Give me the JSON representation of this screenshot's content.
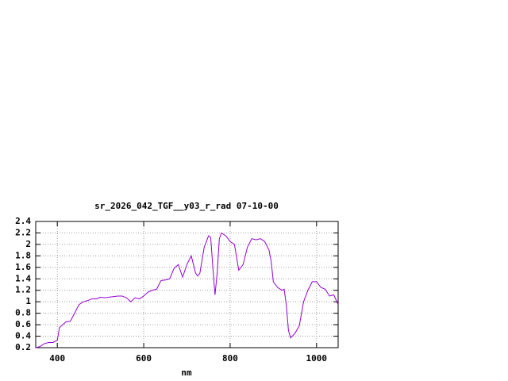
{
  "chart_data": {
    "type": "line",
    "title": "sr_2026_042_TGF__y03_r_rad 07-10-00",
    "x_label": "nm",
    "x": [
      350,
      360,
      370,
      380,
      390,
      400,
      405,
      420,
      430,
      440,
      450,
      460,
      470,
      480,
      490,
      500,
      510,
      520,
      540,
      550,
      560,
      570,
      580,
      590,
      600,
      610,
      620,
      630,
      640,
      650,
      660,
      670,
      680,
      690,
      700,
      710,
      720,
      725,
      730,
      740,
      750,
      755,
      760,
      765,
      770,
      775,
      780,
      790,
      800,
      810,
      820,
      830,
      840,
      850,
      860,
      870,
      880,
      890,
      895,
      900,
      910,
      920,
      925,
      930,
      935,
      940,
      950,
      960,
      970,
      980,
      990,
      1000,
      1010,
      1020,
      1030,
      1040,
      1050
    ],
    "series": [
      {
        "color": "#9400d3",
        "values": [
          0.2,
          0.22,
          0.27,
          0.29,
          0.29,
          0.33,
          0.55,
          0.65,
          0.66,
          0.8,
          0.95,
          1.0,
          1.02,
          1.05,
          1.05,
          1.08,
          1.07,
          1.08,
          1.1,
          1.1,
          1.07,
          1.0,
          1.07,
          1.05,
          1.1,
          1.17,
          1.2,
          1.22,
          1.37,
          1.38,
          1.4,
          1.58,
          1.65,
          1.43,
          1.65,
          1.8,
          1.5,
          1.45,
          1.5,
          1.95,
          2.15,
          2.12,
          1.6,
          1.12,
          1.5,
          2.1,
          2.2,
          2.15,
          2.05,
          2.0,
          1.55,
          1.65,
          1.95,
          2.1,
          2.08,
          2.1,
          2.05,
          1.9,
          1.7,
          1.35,
          1.25,
          1.2,
          1.22,
          0.95,
          0.5,
          0.37,
          0.45,
          0.58,
          1.0,
          1.2,
          1.35,
          1.35,
          1.25,
          1.22,
          1.1,
          1.12,
          0.95
        ]
      }
    ],
    "xlim": [
      350,
      1050
    ],
    "ylim": [
      0.2,
      2.4
    ],
    "xticks": [
      400,
      600,
      800,
      1000
    ],
    "yticks": [
      0.2,
      0.4,
      0.6,
      0.8,
      1,
      1.2,
      1.4,
      1.6,
      1.8,
      2,
      2.2,
      2.4
    ],
    "grid": true
  }
}
